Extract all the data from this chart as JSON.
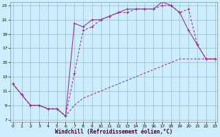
{
  "xlabel": "Windchill (Refroidissement éolien,°C)",
  "background_color": "#cceeff",
  "plot_bg_color": "#cceeff",
  "line_color": "#993399",
  "grid_color": "#99bbcc",
  "xmin": 0,
  "xmax": 23,
  "ymin": 7,
  "ymax": 23,
  "yticks": [
    7,
    9,
    11,
    13,
    15,
    17,
    19,
    21,
    23
  ],
  "xticks": [
    0,
    1,
    2,
    3,
    4,
    5,
    6,
    7,
    8,
    9,
    10,
    11,
    12,
    13,
    14,
    15,
    16,
    17,
    18,
    19,
    20,
    21,
    22,
    23
  ],
  "line1_x": [
    0,
    1,
    2,
    3,
    4,
    5,
    6,
    7,
    8,
    9,
    10,
    11,
    12,
    13,
    14,
    15,
    16,
    17,
    18,
    19,
    20,
    21,
    22,
    23
  ],
  "line1_y": [
    12,
    10.5,
    9,
    9,
    8.5,
    8.5,
    7.5,
    20.5,
    20,
    21,
    21,
    21.5,
    22,
    22.5,
    22.5,
    22.5,
    22.5,
    23.5,
    23,
    22,
    19.5,
    17.5,
    15.5,
    15.5
  ],
  "line2_x": [
    0,
    1,
    2,
    3,
    4,
    5,
    6,
    7,
    8,
    9,
    10,
    11,
    12,
    13,
    14,
    15,
    16,
    17,
    18,
    19,
    20,
    21,
    22,
    23
  ],
  "line2_y": [
    12,
    10.5,
    9,
    9,
    8.5,
    8.5,
    7.5,
    13.5,
    19.5,
    20,
    21,
    21.5,
    22,
    22,
    22.5,
    22.5,
    22.5,
    23,
    23,
    22,
    22.5,
    17.5,
    15.5,
    15.5
  ],
  "line3_x": [
    0,
    1,
    2,
    3,
    4,
    5,
    6,
    7,
    8,
    9,
    10,
    11,
    12,
    13,
    14,
    15,
    16,
    17,
    18,
    19,
    20,
    21,
    22,
    23
  ],
  "line3_y": [
    12,
    10.5,
    9,
    9,
    8.5,
    8.5,
    7.5,
    9,
    10,
    10.5,
    11,
    11.5,
    12,
    12.5,
    13,
    13.5,
    14,
    14.5,
    15,
    15.5,
    15.5,
    15.5,
    15.5,
    15.5
  ]
}
